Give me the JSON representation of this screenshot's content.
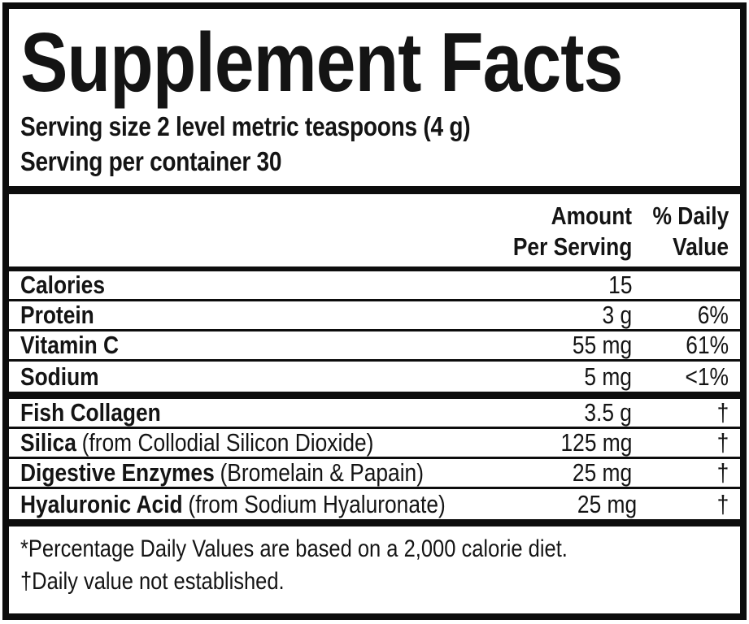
{
  "label": {
    "title": "Supplement Facts",
    "serving": {
      "size_line": "Serving size 2 level metric teaspoons (4 g)",
      "container_line": "Serving per container 30"
    },
    "columns": {
      "amount_line1": "Amount",
      "amount_line2": "Per Serving",
      "dv_line1": "% Daily",
      "dv_line2": "Value"
    },
    "rows": [
      {
        "name": "Calories",
        "qualifier": "",
        "amount": "15",
        "dv": ""
      },
      {
        "name": "Protein",
        "qualifier": "",
        "amount": "3 g",
        "dv": "6%"
      },
      {
        "name": "Vitamin C",
        "qualifier": "",
        "amount": "55 mg",
        "dv": "61%"
      },
      {
        "name": "Sodium",
        "qualifier": "",
        "amount": "5 mg",
        "dv": "<1%"
      },
      {
        "name": "Fish Collagen",
        "qualifier": "",
        "amount": "3.5 g",
        "dv": "†"
      },
      {
        "name": "Silica",
        "qualifier": "(from Collodial Silicon Dioxide)",
        "amount": "125 mg",
        "dv": "†"
      },
      {
        "name": "Digestive Enzymes",
        "qualifier": "(Bromelain & Papain)",
        "amount": "25 mg",
        "dv": "†"
      },
      {
        "name": "Hyaluronic Acid",
        "qualifier": "(from Sodium Hyaluronate)",
        "amount": "25 mg",
        "dv": "†"
      }
    ],
    "footnotes": [
      "*Percentage Daily Values are based on a 2,000 calorie diet.",
      "†Daily value not established."
    ],
    "colors": {
      "ink": "#0d0d0d",
      "background": "#ffffff"
    }
  }
}
